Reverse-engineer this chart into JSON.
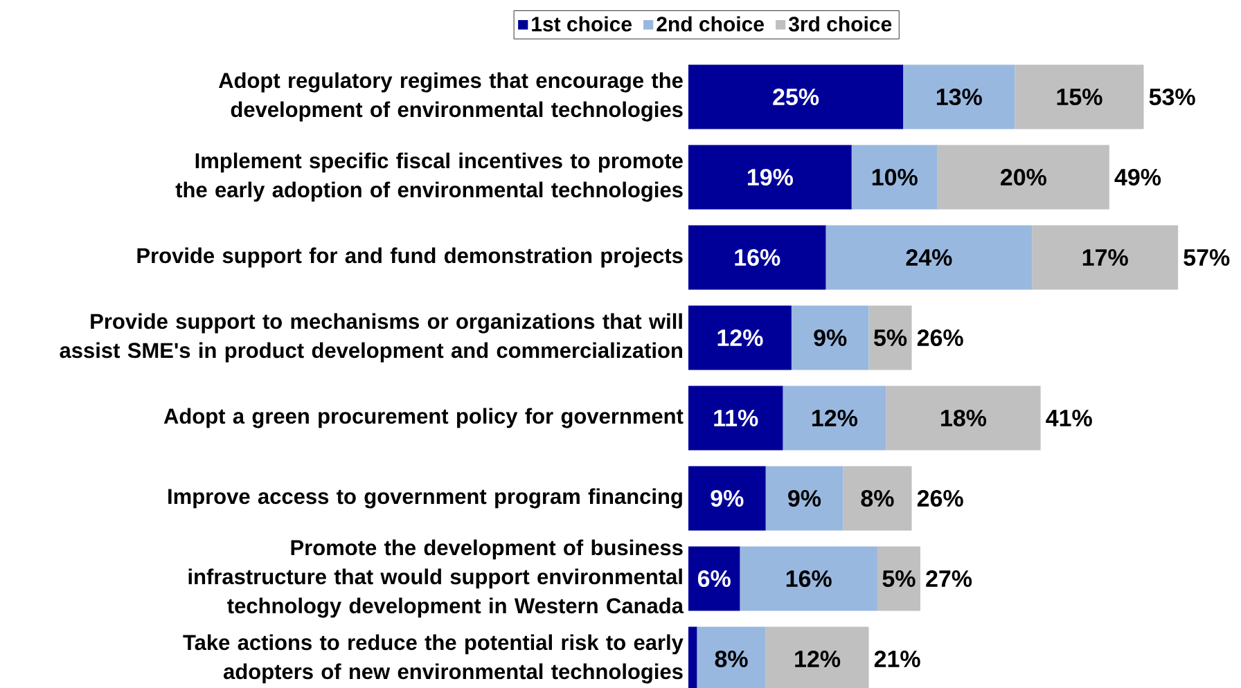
{
  "chart_data": {
    "type": "bar",
    "orientation": "horizontal",
    "stacked": true,
    "legend": "top",
    "categories": [
      "Adopt regulatory regimes that encourage the development of environmental technologies",
      "Implement specific fiscal incentives to promote the early adoption of environmental technologies",
      "Provide support for and fund demonstration projects",
      "Provide support to mechanisms or organizations that will assist SME's in product development and commercialization",
      "Adopt a green procurement policy for government",
      "Improve access to government program financing",
      "Promote the development of business infrastructure that would support environmental technology development in Western Canada",
      "Take actions to reduce the potential risk to early adopters of new environmental technologies"
    ],
    "series": [
      {
        "name": "1st choice",
        "color": "#000099",
        "values": [
          25,
          19,
          16,
          12,
          11,
          9,
          6,
          1
        ],
        "value_labels": [
          "25%",
          "19%",
          "16%",
          "12%",
          "11%",
          "9%",
          "6%",
          null
        ]
      },
      {
        "name": "2nd choice",
        "color": "#99b8e0",
        "values": [
          13,
          10,
          24,
          9,
          12,
          9,
          16,
          8
        ],
        "value_labels": [
          "13%",
          "10%",
          "24%",
          "9%",
          "12%",
          "9%",
          "16%",
          "8%"
        ]
      },
      {
        "name": "3rd choice",
        "color": "#c0c0c0",
        "values": [
          15,
          20,
          17,
          5,
          18,
          8,
          5,
          12
        ],
        "value_labels": [
          "15%",
          "20%",
          "17%",
          "5%",
          "18%",
          "8%",
          "5%",
          "12%"
        ]
      }
    ],
    "totals": [
      "53%",
      "49%",
      "57%",
      "26%",
      "41%",
      "26%",
      "27%",
      "21%"
    ]
  }
}
